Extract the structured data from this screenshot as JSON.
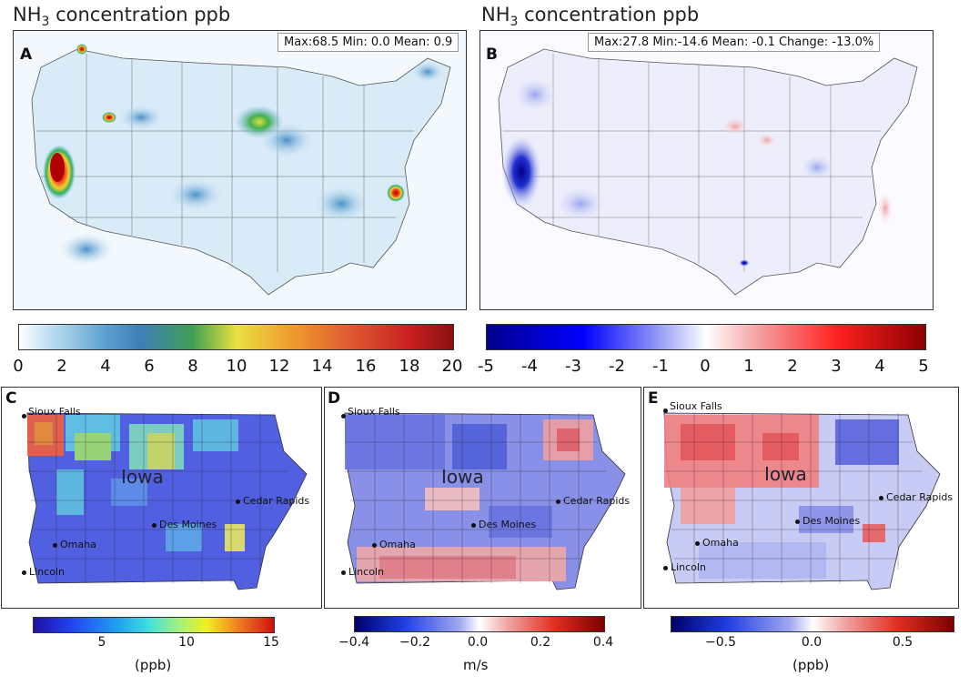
{
  "panel_a": {
    "title_prefix": "NH",
    "title_sub": "3",
    "title_suffix": " concentration ppb",
    "label": "A",
    "stats": "Max:68.5  Min: 0.0  Mean:  0.9",
    "colorbar_ticks": [
      "0",
      "2",
      "4",
      "6",
      "8",
      "10",
      "12",
      "14",
      "16",
      "18",
      "20"
    ]
  },
  "panel_b": {
    "title_prefix": "NH",
    "title_sub": "3",
    "title_suffix": " concentration ppb",
    "label": "B",
    "stats": "Max:27.8  Min:-14.6  Mean: -0.1 Change: -13.0%",
    "colorbar_ticks": [
      "-5",
      "-4",
      "-3",
      "-2",
      "-1",
      "0",
      "1",
      "2",
      "3",
      "4",
      "5"
    ]
  },
  "panel_c": {
    "label": "C",
    "state": "Iowa",
    "cities": {
      "sioux_falls": "Sioux Falls",
      "cedar_rapids": "Cedar Rapids",
      "des_moines": "Des Moines",
      "omaha": "Omaha",
      "lincoln": "Lincoln"
    },
    "colorbar_ticks": [
      "5",
      "10",
      "15"
    ],
    "colorbar_unit": "(ppb)"
  },
  "panel_d": {
    "label": "D",
    "state": "Iowa",
    "cities": {
      "sioux_falls": "Sioux Falls",
      "cedar_rapids": "Cedar Rapids",
      "des_moines": "Des Moines",
      "omaha": "Omaha",
      "lincoln": "Lincoln"
    },
    "colorbar_ticks": [
      "−0.4",
      "−0.2",
      "0.0",
      "0.2",
      "0.4"
    ],
    "colorbar_unit": "m/s"
  },
  "panel_e": {
    "label": "E",
    "state": "Iowa",
    "cities": {
      "sioux_falls": "Sioux Falls",
      "cedar_rapids": "Cedar Rapids",
      "des_moines": "Des Moines",
      "omaha": "Omaha",
      "lincoln": "Lincoln"
    },
    "colorbar_ticks": [
      "−0.5",
      "0.0",
      "0.5"
    ],
    "colorbar_unit": "(ppb)"
  }
}
